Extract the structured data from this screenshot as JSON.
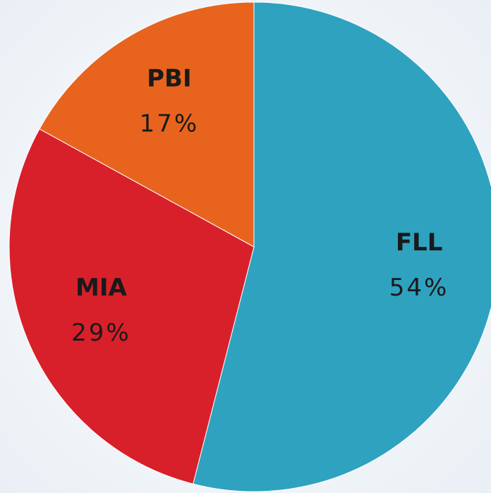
{
  "chart_data": {
    "type": "pie",
    "categories": [
      "FLL",
      "MIA",
      "PBI"
    ],
    "values": [
      54,
      29,
      17
    ],
    "value_labels": [
      "54%",
      "29%",
      "17%"
    ],
    "colors": [
      "#2fa2c0",
      "#d8202b",
      "#e8641e"
    ]
  }
}
